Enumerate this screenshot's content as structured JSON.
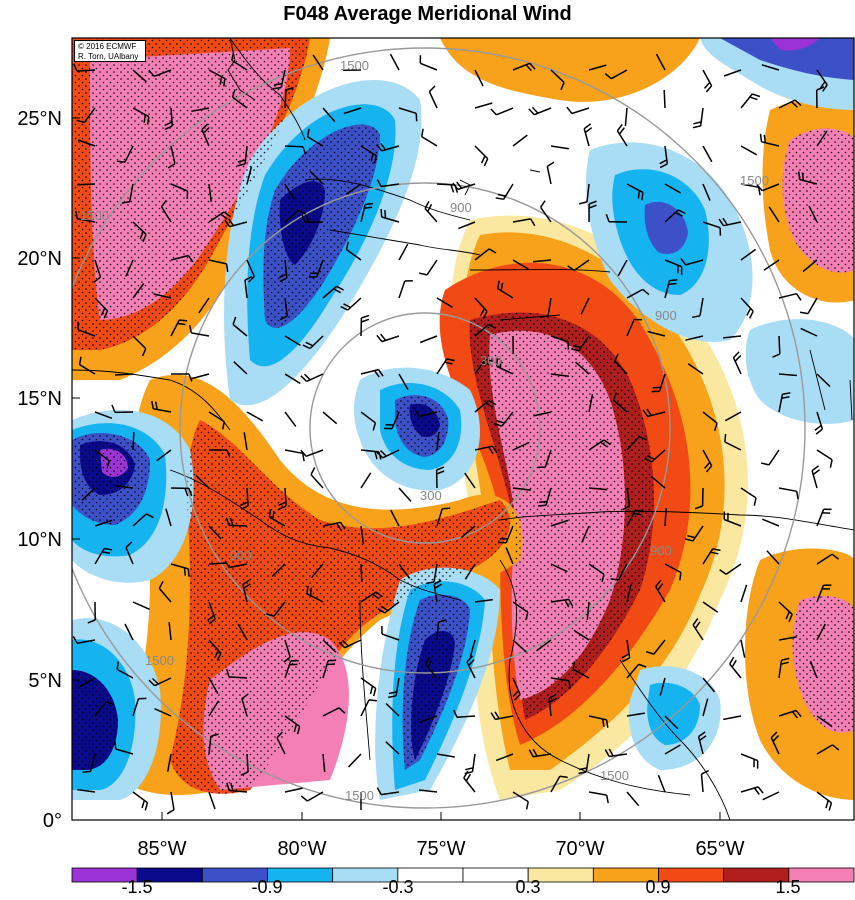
{
  "title": "F048 Average Meridional Wind",
  "credit": {
    "line1": "© 2016 ECMWF",
    "line2": "R. Torn, UAlbany"
  },
  "axes": {
    "y_ticks": [
      "0°",
      "5°N",
      "10°N",
      "15°N",
      "20°N",
      "25°N"
    ],
    "x_ticks": [
      "85°W",
      "80°W",
      "75°W",
      "70°W",
      "65°W"
    ]
  },
  "range_rings": {
    "labels": [
      "300",
      "300",
      "900",
      "900",
      "900",
      "900",
      "1500",
      "1500",
      "1500",
      "1500",
      "1500",
      "1500"
    ],
    "radii_km": [
      300,
      900,
      1500
    ],
    "color": "#999999"
  },
  "colorbar": {
    "labels": [
      "-1.5",
      "-0.9",
      "-0.3",
      "0.3",
      "0.9",
      "1.5"
    ],
    "colors": [
      "#9b33d6",
      "#0a0a8c",
      "#3c50c8",
      "#15b4f0",
      "#a9dcf5",
      "#ffffff",
      "#ffffff",
      "#fbe8a0",
      "#f7a21a",
      "#f14a14",
      "#b01e1e",
      "#f37fb5"
    ]
  },
  "palette": {
    "background": "#ffffff",
    "land_outline": "#000000",
    "barb_color": "#000000"
  }
}
